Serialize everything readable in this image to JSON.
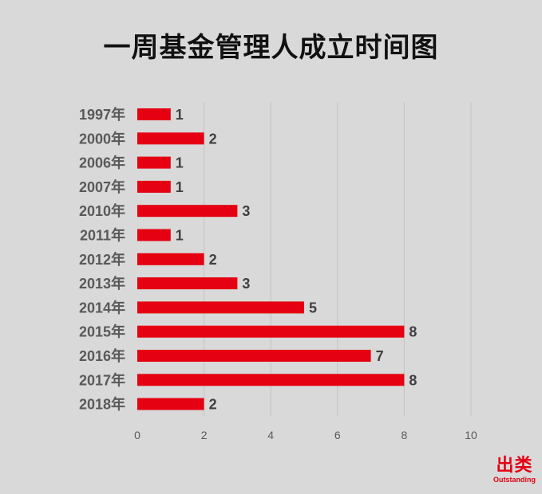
{
  "chart_data": {
    "type": "bar",
    "orientation": "horizontal",
    "title": "一周基金管理人成立时间图",
    "categories": [
      "1997年",
      "2000年",
      "2006年",
      "2007年",
      "2010年",
      "2011年",
      "2012年",
      "2013年",
      "2014年",
      "2015年",
      "2016年",
      "2017年",
      "2018年"
    ],
    "values": [
      1,
      2,
      1,
      1,
      3,
      1,
      2,
      3,
      5,
      8,
      7,
      8,
      2
    ],
    "xlim": [
      0,
      10
    ],
    "xticks": [
      "0",
      "2",
      "4",
      "6",
      "8",
      "10"
    ],
    "grid": true,
    "data_labels": true,
    "bar_color": "#e50012"
  },
  "branding": {
    "cn": "出类",
    "en": "Outstanding"
  },
  "colors": {
    "background": "#d9d9d9",
    "accent": "#e50012"
  }
}
